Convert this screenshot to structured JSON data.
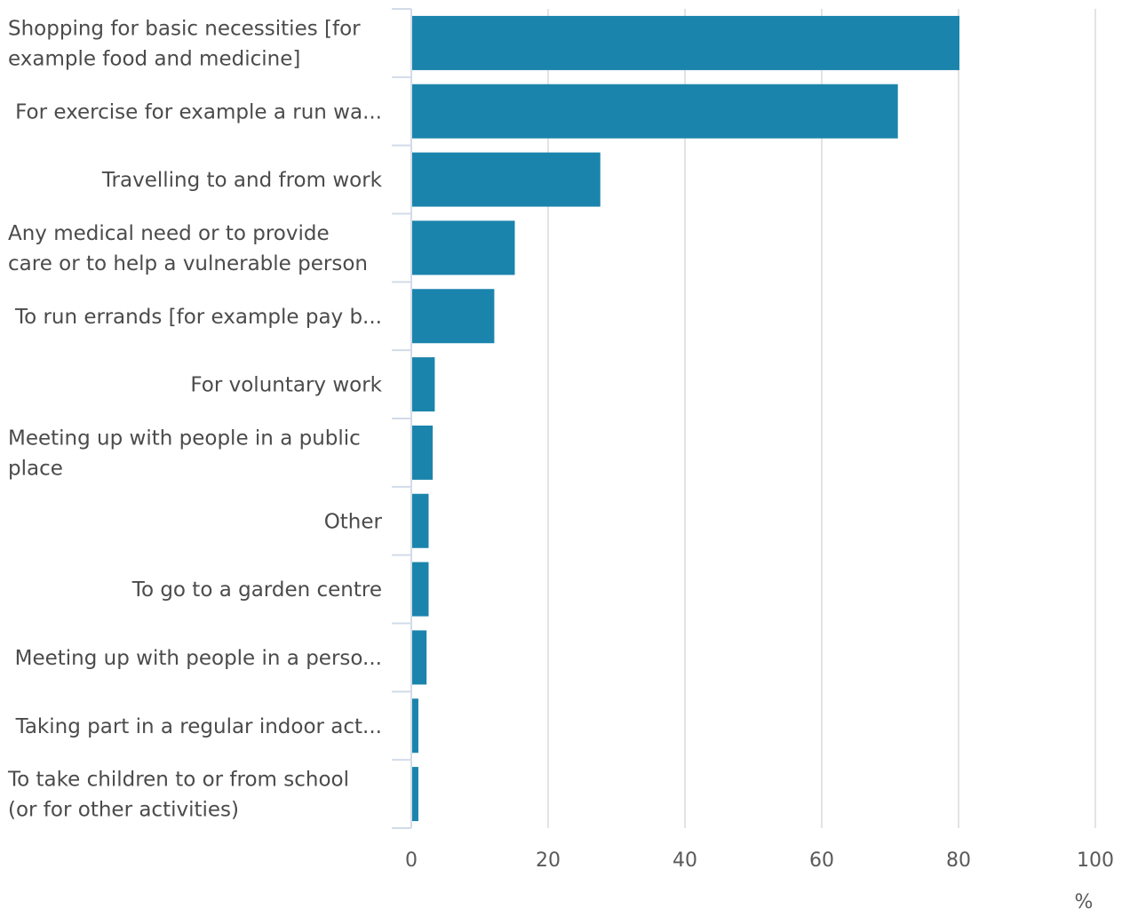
{
  "chart_data": {
    "type": "bar",
    "orientation": "horizontal",
    "categories": [
      "Shopping for basic necessities [for example food and medicine]",
      "For exercise for example a run wa...",
      "Travelling to and from work",
      "Any medical need or to provide care or to help a vulnerable person",
      "To run errands [for example pay b...",
      "For voluntary work",
      "Meeting up with people in a public place",
      "Other",
      "To go to a garden centre",
      "Meeting up with people in a perso...",
      "Taking part in a regular indoor act...",
      "To take children to or from school (or for other activities)"
    ],
    "category_lines": [
      [
        "Shopping for basic necessities [for",
        "example food and medicine]"
      ],
      [
        "For exercise for example a run wa..."
      ],
      [
        "Travelling to and from work"
      ],
      [
        "Any medical need or to provide",
        "care or to help a vulnerable person"
      ],
      [
        "To run errands [for example pay b..."
      ],
      [
        "For voluntary work"
      ],
      [
        "Meeting up with people in a public",
        "place"
      ],
      [
        "Other"
      ],
      [
        "To go to a garden centre"
      ],
      [
        "Meeting up with people in a perso..."
      ],
      [
        "Taking part in a regular indoor act..."
      ],
      [
        "To take children to or from school",
        "(or for other activities)"
      ]
    ],
    "values": [
      80,
      71,
      27.5,
      15,
      12,
      3.3,
      3,
      2.4,
      2.4,
      2.1,
      0.9,
      0.9
    ],
    "xlabel": "%",
    "ylabel": "",
    "xlim": [
      0,
      100
    ],
    "xticks": [
      "0",
      "20",
      "40",
      "60",
      "80",
      "100"
    ],
    "grid": "vertical",
    "bar_color": "#1b84ac"
  }
}
